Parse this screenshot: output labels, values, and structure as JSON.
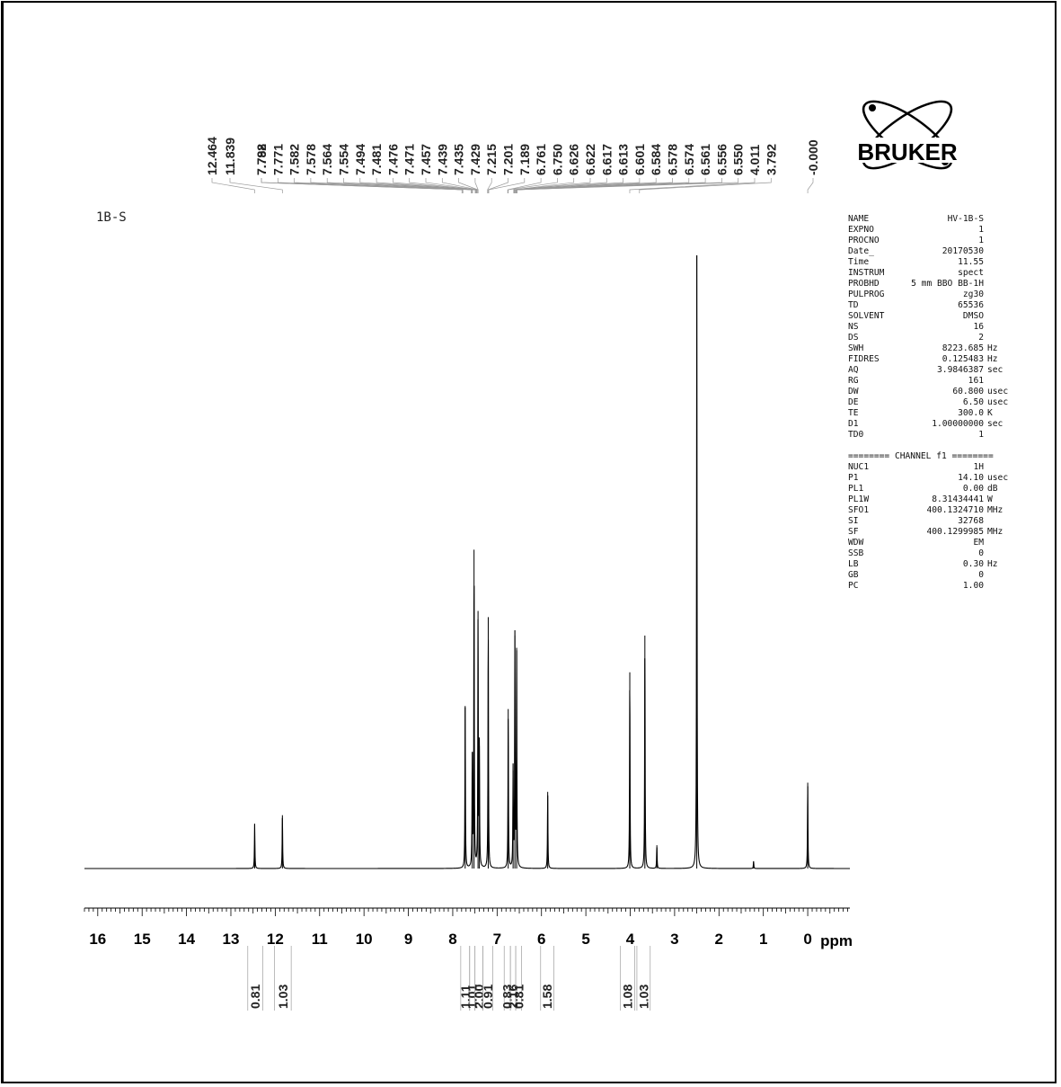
{
  "chart_data": {
    "type": "line",
    "title": "1B-S",
    "x_unit": "ppm",
    "x_ticks": [
      "16",
      "15",
      "14",
      "13",
      "12",
      "11",
      "10",
      "9",
      "8",
      "7",
      "6",
      "5",
      "4",
      "3",
      "2",
      "1",
      "0"
    ],
    "xlim": [
      16.3,
      -0.95
    ],
    "peak_labels": [
      "12.464",
      "11.839",
      "7.792",
      "7.788",
      "7.771",
      "7.582",
      "7.578",
      "7.564",
      "7.554",
      "7.494",
      "7.481",
      "7.476",
      "7.471",
      "7.457",
      "7.439",
      "7.435",
      "7.429",
      "7.215",
      "7.201",
      "7.189",
      "6.761",
      "6.750",
      "6.626",
      "6.622",
      "6.617",
      "6.613",
      "6.601",
      "6.584",
      "6.578",
      "6.574",
      "6.561",
      "6.556",
      "6.550",
      "4.011",
      "3.792",
      "-0.000"
    ],
    "series": [
      {
        "peaks": [
          {
            "ppm": 12.464,
            "height": 0.073
          },
          {
            "ppm": 11.839,
            "height": 0.087
          },
          {
            "ppm": 7.72,
            "height": 0.265
          },
          {
            "ppm": 7.56,
            "height": 0.19
          },
          {
            "ppm": 7.52,
            "height": 0.52
          },
          {
            "ppm": 7.43,
            "height": 0.42
          },
          {
            "ppm": 7.4,
            "height": 0.2
          },
          {
            "ppm": 7.2,
            "height": 0.41
          },
          {
            "ppm": 6.75,
            "height": 0.26
          },
          {
            "ppm": 6.64,
            "height": 0.16
          },
          {
            "ppm": 6.6,
            "height": 0.38
          },
          {
            "ppm": 6.56,
            "height": 0.36
          },
          {
            "ppm": 5.86,
            "height": 0.125
          },
          {
            "ppm": 4.01,
            "height": 0.32
          },
          {
            "ppm": 3.67,
            "height": 0.38
          },
          {
            "ppm": 3.4,
            "height": 0.038
          },
          {
            "ppm": 2.5,
            "height": 1.0
          },
          {
            "ppm": 1.22,
            "height": 0.012
          },
          {
            "ppm": 0.0,
            "height": 0.14
          }
        ]
      }
    ],
    "integrals": [
      {
        "from": 12.62,
        "to": 12.28,
        "value": "0.81"
      },
      {
        "from": 12.02,
        "to": 11.64,
        "value": "1.03"
      },
      {
        "from": 7.82,
        "to": 7.62,
        "value": "1.11"
      },
      {
        "from": 7.62,
        "to": 7.5,
        "value": "1.01"
      },
      {
        "from": 7.5,
        "to": 7.32,
        "value": "2.00"
      },
      {
        "from": 7.32,
        "to": 7.1,
        "value": "0.91"
      },
      {
        "from": 6.84,
        "to": 6.7,
        "value": "0.83"
      },
      {
        "from": 6.7,
        "to": 6.58,
        "value": "2.16"
      },
      {
        "from": 6.58,
        "to": 6.45,
        "value": "0.81"
      },
      {
        "from": 6.02,
        "to": 5.72,
        "value": "1.58"
      },
      {
        "from": 4.22,
        "to": 3.9,
        "value": "1.08"
      },
      {
        "from": 3.85,
        "to": 3.55,
        "value": "1.03"
      }
    ]
  },
  "logo": {
    "text": "BRUKER"
  },
  "parameters": [
    {
      "name": "NAME",
      "value": "HV-1B-S",
      "unit": ""
    },
    {
      "name": "EXPNO",
      "value": "1",
      "unit": ""
    },
    {
      "name": "PROCNO",
      "value": "1",
      "unit": ""
    },
    {
      "name": "Date_",
      "value": "20170530",
      "unit": ""
    },
    {
      "name": "Time",
      "value": "11.55",
      "unit": ""
    },
    {
      "name": "INSTRUM",
      "value": "spect",
      "unit": ""
    },
    {
      "name": "PROBHD",
      "value": "5 mm BBO BB-1H",
      "unit": ""
    },
    {
      "name": "PULPROG",
      "value": "zg30",
      "unit": ""
    },
    {
      "name": "TD",
      "value": "65536",
      "unit": ""
    },
    {
      "name": "SOLVENT",
      "value": "DMSO",
      "unit": ""
    },
    {
      "name": "NS",
      "value": "16",
      "unit": ""
    },
    {
      "name": "DS",
      "value": "2",
      "unit": ""
    },
    {
      "name": "SWH",
      "value": "8223.685",
      "unit": "Hz"
    },
    {
      "name": "FIDRES",
      "value": "0.125483",
      "unit": "Hz"
    },
    {
      "name": "AQ",
      "value": "3.9846387",
      "unit": "sec"
    },
    {
      "name": "RG",
      "value": "161",
      "unit": ""
    },
    {
      "name": "DW",
      "value": "60.800",
      "unit": "usec"
    },
    {
      "name": "DE",
      "value": "6.50",
      "unit": "usec"
    },
    {
      "name": "TE",
      "value": "300.0",
      "unit": "K"
    },
    {
      "name": "D1",
      "value": "1.00000000",
      "unit": "sec"
    },
    {
      "name": "TD0",
      "value": "1",
      "unit": ""
    }
  ],
  "channel_header": "======== CHANNEL f1 ========",
  "channel_parameters": [
    {
      "name": "NUC1",
      "value": "1H",
      "unit": ""
    },
    {
      "name": "P1",
      "value": "14.10",
      "unit": "usec"
    },
    {
      "name": "PL1",
      "value": "0.00",
      "unit": "dB"
    },
    {
      "name": "PL1W",
      "value": "8.31434441",
      "unit": "W"
    },
    {
      "name": "SFO1",
      "value": "400.1324710",
      "unit": "MHz"
    },
    {
      "name": "SI",
      "value": "32768",
      "unit": ""
    },
    {
      "name": "SF",
      "value": "400.1299985",
      "unit": "MHz"
    },
    {
      "name": "WDW",
      "value": "EM",
      "unit": ""
    },
    {
      "name": "SSB",
      "value": "0",
      "unit": ""
    },
    {
      "name": "LB",
      "value": "0.30",
      "unit": "Hz"
    },
    {
      "name": "GB",
      "value": "0",
      "unit": ""
    },
    {
      "name": "PC",
      "value": "1.00",
      "unit": ""
    }
  ]
}
